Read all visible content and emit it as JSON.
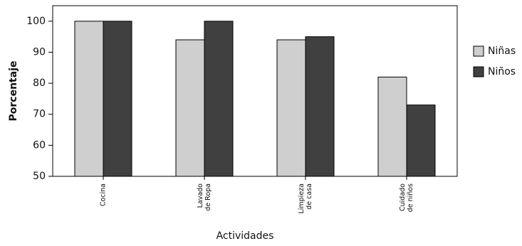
{
  "chart_data": {
    "type": "bar",
    "categories": [
      [
        "Cocina"
      ],
      [
        "Lavado",
        "de Ropa"
      ],
      [
        "Limpieza",
        "de casa"
      ],
      [
        "Cuidado",
        "de niños"
      ]
    ],
    "series": [
      {
        "name": "Niñas",
        "values": [
          100,
          94,
          94,
          82
        ],
        "color": "#cfcfcf"
      },
      {
        "name": "Niños",
        "values": [
          100,
          100,
          95,
          73
        ],
        "color": "#404040"
      }
    ],
    "xlabel": "Actividades",
    "ylabel": "Porcentaje",
    "ylim": [
      50,
      105
    ],
    "yticks": [
      50,
      60,
      70,
      80,
      90,
      100
    ],
    "grid": false,
    "legend": "right"
  }
}
